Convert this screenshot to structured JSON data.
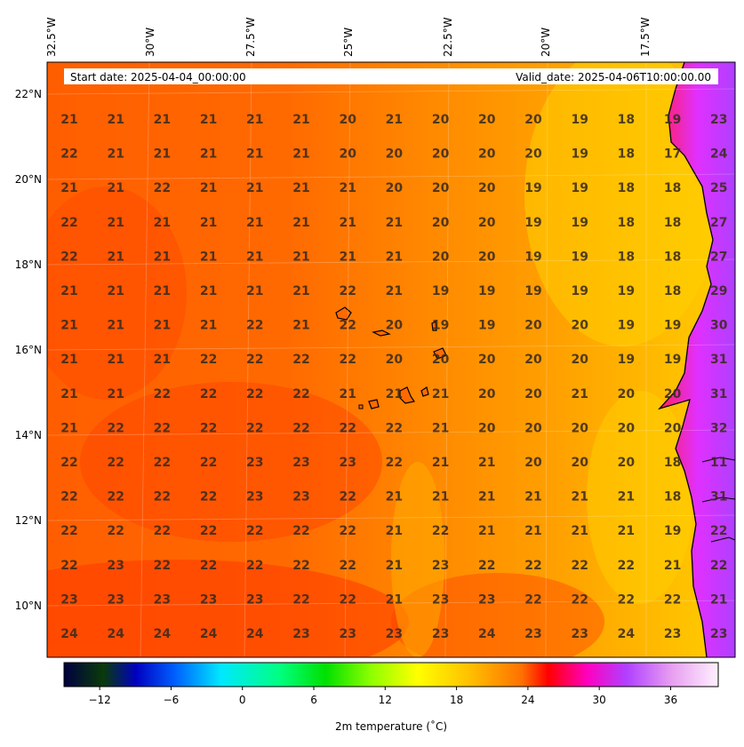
{
  "header": {
    "start_label": "Start date: 2025-04-04_00:00:00",
    "valid_label": "Valid_date: 2025-04-06T10:00:00.00"
  },
  "axes": {
    "lon_labels": [
      "32.5°W",
      "30°W",
      "27.5°W",
      "25°W",
      "22.5°W",
      "20°W",
      "17.5°W"
    ],
    "lat_labels": [
      "22°N",
      "20°N",
      "18°N",
      "16°N",
      "14°N",
      "12°N",
      "10°N"
    ]
  },
  "colorbar": {
    "label": "2m temperature ($^\\circ$C)",
    "label_text": "2m temperature (˚C)",
    "ticks": [
      "−12",
      "−6",
      "0",
      "6",
      "12",
      "18",
      "24",
      "30",
      "36"
    ],
    "range": [
      -15,
      40
    ]
  },
  "colors": {
    "ocean_warm": "#ff5a00",
    "ocean_mid": "#ff8a00",
    "coast_cool": "#ffc800",
    "land_hot": "#c040ff",
    "coastline": "#000000"
  },
  "grid_values": [
    [
      "21",
      "21",
      "21",
      "21",
      "21",
      "21",
      "20",
      "21",
      "20",
      "20",
      "20",
      "19",
      "18",
      "19",
      "23"
    ],
    [
      "22",
      "21",
      "21",
      "21",
      "21",
      "21",
      "20",
      "20",
      "20",
      "20",
      "20",
      "19",
      "18",
      "17",
      "24"
    ],
    [
      "21",
      "21",
      "22",
      "21",
      "21",
      "21",
      "21",
      "20",
      "20",
      "20",
      "19",
      "19",
      "18",
      "18",
      "25"
    ],
    [
      "22",
      "21",
      "21",
      "21",
      "21",
      "21",
      "21",
      "21",
      "20",
      "20",
      "19",
      "19",
      "18",
      "18",
      "27"
    ],
    [
      "22",
      "21",
      "21",
      "21",
      "21",
      "21",
      "21",
      "21",
      "20",
      "20",
      "19",
      "19",
      "18",
      "18",
      "27"
    ],
    [
      "21",
      "21",
      "21",
      "21",
      "21",
      "21",
      "22",
      "21",
      "19",
      "19",
      "19",
      "19",
      "19",
      "18",
      "29"
    ],
    [
      "21",
      "21",
      "21",
      "21",
      "22",
      "21",
      "22",
      "20",
      "19",
      "19",
      "20",
      "20",
      "19",
      "19",
      "30"
    ],
    [
      "21",
      "21",
      "21",
      "22",
      "22",
      "22",
      "22",
      "20",
      "20",
      "20",
      "20",
      "20",
      "19",
      "19",
      "31"
    ],
    [
      "21",
      "21",
      "22",
      "22",
      "22",
      "22",
      "21",
      "21",
      "21",
      "20",
      "20",
      "21",
      "20",
      "20",
      "31"
    ],
    [
      "21",
      "22",
      "22",
      "22",
      "22",
      "22",
      "22",
      "22",
      "21",
      "20",
      "20",
      "20",
      "20",
      "20",
      "32"
    ],
    [
      "22",
      "22",
      "22",
      "22",
      "23",
      "23",
      "23",
      "22",
      "21",
      "21",
      "20",
      "20",
      "20",
      "18",
      "11"
    ],
    [
      "22",
      "22",
      "22",
      "22",
      "23",
      "23",
      "22",
      "21",
      "21",
      "21",
      "21",
      "21",
      "21",
      "18",
      "31"
    ],
    [
      "22",
      "22",
      "22",
      "22",
      "22",
      "22",
      "22",
      "21",
      "22",
      "21",
      "21",
      "21",
      "21",
      "19",
      "22"
    ],
    [
      "22",
      "23",
      "22",
      "22",
      "22",
      "22",
      "22",
      "21",
      "23",
      "22",
      "22",
      "22",
      "22",
      "21",
      "22"
    ],
    [
      "23",
      "23",
      "23",
      "23",
      "23",
      "22",
      "22",
      "21",
      "23",
      "23",
      "22",
      "22",
      "22",
      "22",
      "21"
    ],
    [
      "24",
      "24",
      "24",
      "24",
      "24",
      "23",
      "23",
      "23",
      "23",
      "24",
      "23",
      "23",
      "24",
      "23",
      "23"
    ]
  ]
}
